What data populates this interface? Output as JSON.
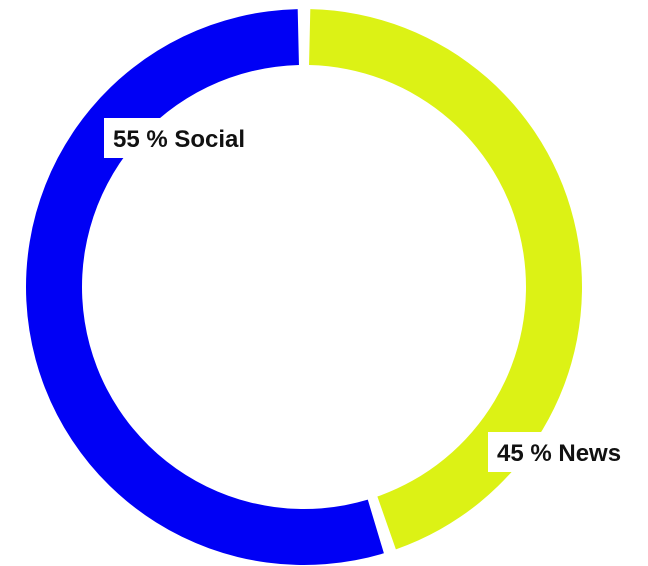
{
  "chart_data": {
    "type": "pie",
    "style": "donut",
    "slices": [
      {
        "label": "News",
        "value": 45,
        "display": "45 % News",
        "color": "#DCF215"
      },
      {
        "label": "Social",
        "value": 55,
        "display": "55 % Social",
        "color": "#0000F5"
      }
    ],
    "legend": "none"
  }
}
